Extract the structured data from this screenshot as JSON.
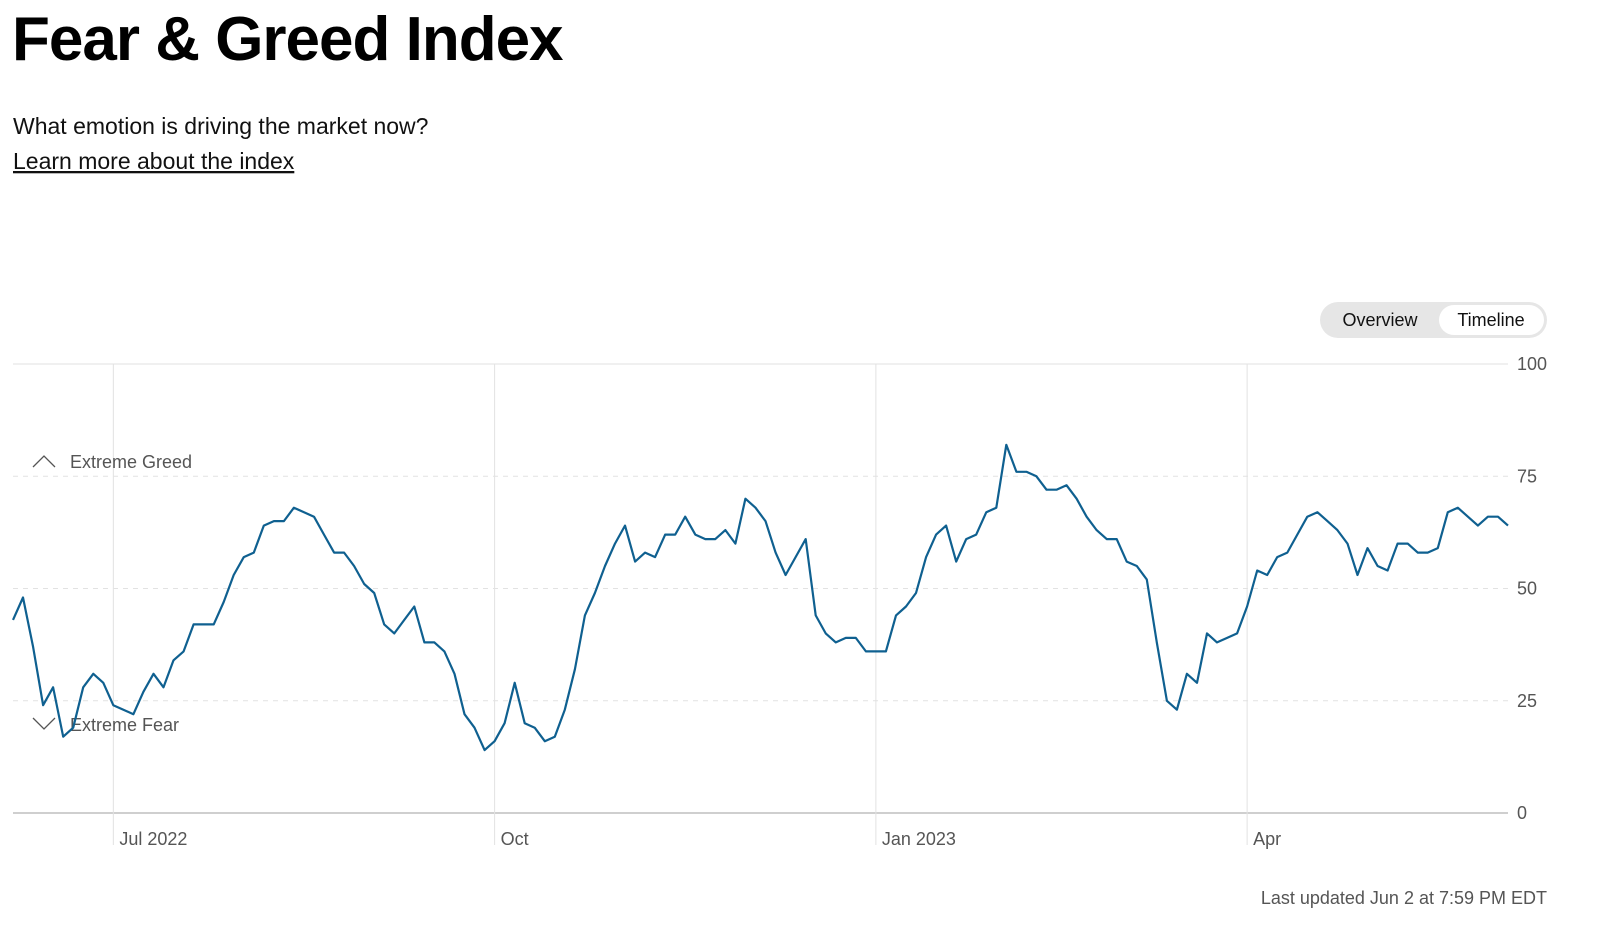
{
  "chart_data": {
    "type": "line",
    "title": "Fear & Greed Index",
    "subtitle": "What emotion is driving the market now?",
    "link": "Learn more about the index",
    "controls": [
      "Overview",
      "Timeline"
    ],
    "annotations": [
      "Extreme Greed",
      "Extreme Fear"
    ],
    "footnote": "Last updated Jun 2 at 7:59 PM EDT",
    "color": "#0f6090",
    "grid": true,
    "ylim": [
      0,
      100
    ],
    "yticks": [
      0,
      25,
      50,
      75,
      100
    ],
    "categories": [
      null,
      null,
      null,
      null,
      null,
      null,
      null,
      null,
      null,
      null,
      "Jul 2022",
      null,
      null,
      null,
      null,
      null,
      null,
      null,
      null,
      null,
      null,
      null,
      null,
      null,
      null,
      null,
      null,
      null,
      null,
      null,
      null,
      null,
      null,
      null,
      null,
      null,
      null,
      null,
      null,
      null,
      null,
      null,
      null,
      null,
      null,
      null,
      null,
      null,
      "Oct",
      null,
      null,
      null,
      null,
      null,
      null,
      null,
      null,
      null,
      null,
      null,
      null,
      null,
      null,
      null,
      null,
      null,
      null,
      null,
      null,
      null,
      null,
      null,
      null,
      null,
      null,
      null,
      null,
      null,
      null,
      null,
      null,
      null,
      null,
      null,
      null,
      null,
      "Jan 2023",
      null,
      null,
      null,
      null,
      null,
      null,
      null,
      null,
      null,
      null,
      null,
      null,
      null,
      null,
      null,
      null,
      null,
      null,
      null,
      null,
      null,
      null,
      null,
      null,
      null,
      null,
      null,
      null,
      null,
      null,
      null,
      null,
      null,
      null,
      null,
      null,
      "Apr",
      null,
      null,
      null,
      null,
      null,
      null,
      null,
      null,
      null,
      null,
      null,
      null,
      null,
      null,
      null,
      null,
      null,
      null,
      null,
      null,
      null,
      null,
      null,
      null,
      null,
      null
    ],
    "values": [
      43,
      48,
      37,
      24,
      28,
      17,
      19,
      28,
      31,
      29,
      24,
      23,
      22,
      27,
      31,
      28,
      34,
      36,
      42,
      42,
      42,
      47,
      53,
      57,
      58,
      64,
      65,
      65,
      68,
      67,
      66,
      62,
      58,
      58,
      55,
      51,
      49,
      42,
      40,
      43,
      46,
      38,
      38,
      36,
      31,
      22,
      19,
      14,
      16,
      20,
      29,
      20,
      19,
      16,
      17,
      23,
      32,
      44,
      49,
      55,
      60,
      64,
      56,
      58,
      57,
      62,
      62,
      66,
      62,
      61,
      61,
      63,
      60,
      70,
      68,
      65,
      58,
      53,
      57,
      61,
      44,
      40,
      38,
      39,
      39,
      36,
      36,
      36,
      44,
      46,
      49,
      57,
      62,
      64,
      56,
      61,
      62,
      67,
      68,
      82,
      76,
      76,
      75,
      72,
      72,
      73,
      70,
      66,
      63,
      61,
      61,
      56,
      55,
      52,
      38,
      25,
      23,
      31,
      29,
      40,
      38,
      39,
      40,
      46,
      54,
      53,
      57,
      58,
      62,
      66,
      67,
      65,
      63,
      60,
      53,
      59,
      55,
      54,
      60,
      60,
      58,
      58,
      59,
      67,
      68,
      66,
      64,
      66,
      66,
      64
    ]
  }
}
